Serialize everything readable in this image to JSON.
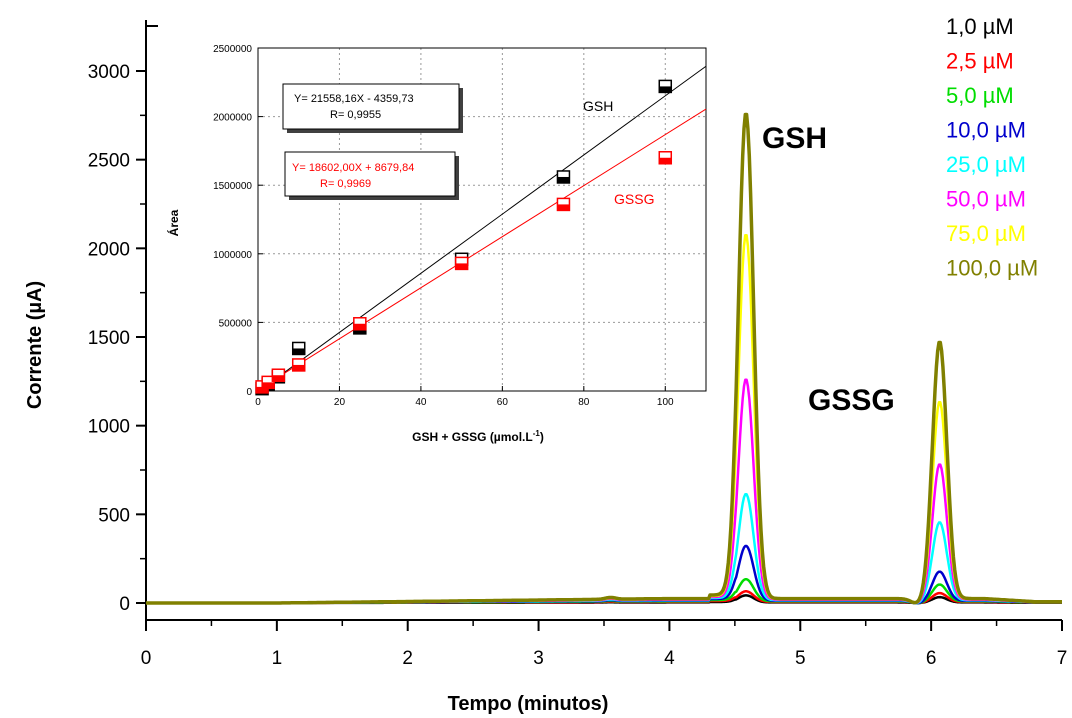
{
  "chart_data": [
    {
      "type": "line",
      "xlabel": "Tempo (minutos)",
      "ylabel": "Corrente (µA)",
      "xlim": [
        0,
        7
      ],
      "ylim": [
        -100,
        3200
      ],
      "xticks": [
        "0",
        "1",
        "2",
        "3",
        "4",
        "5",
        "6",
        "7"
      ],
      "yticks": [
        "0",
        "500",
        "1000",
        "1500",
        "2000",
        "2500",
        "3000"
      ],
      "peak_labels": [
        "GSH",
        "GSSG"
      ],
      "legend_position": "top-right",
      "series": [
        {
          "name": "1,0 µM",
          "color": "#000000",
          "gsh_peak": 40,
          "gssg_peak": 30
        },
        {
          "name": "2,5 µM",
          "color": "#ff0000",
          "gsh_peak": 60,
          "gssg_peak": 50
        },
        {
          "name": "5,0 µM",
          "color": "#00dd00",
          "gsh_peak": 125,
          "gssg_peak": 95
        },
        {
          "name": "10,0 µM",
          "color": "#0000cc",
          "gsh_peak": 310,
          "gssg_peak": 165
        },
        {
          "name": "25,0 µM",
          "color": "#00ffff",
          "gsh_peak": 600,
          "gssg_peak": 440
        },
        {
          "name": "50,0 µM",
          "color": "#ff00ff",
          "gsh_peak": 1245,
          "gssg_peak": 765
        },
        {
          "name": "75,0 µM",
          "color": "#ffff00",
          "gsh_peak": 2060,
          "gssg_peak": 1115
        },
        {
          "name": "100,0 µM",
          "color": "#808000",
          "gsh_peak": 2740,
          "gssg_peak": 1450
        }
      ]
    },
    {
      "type": "scatter",
      "xlabel": "GSH + GSSG (µmol.L",
      "xlabel_sup": "-1",
      "xlabel_suffix": ")",
      "ylabel": "Área",
      "xlim": [
        0,
        110
      ],
      "ylim": [
        0,
        2500000
      ],
      "xticks": [
        "0",
        "20",
        "40",
        "60",
        "80",
        "100"
      ],
      "yticks": [
        "0",
        "500000",
        "1000000",
        "1500000",
        "2000000",
        "2500000"
      ],
      "series": [
        {
          "name": "GSH",
          "color": "#000000",
          "x": [
            1,
            2.5,
            5,
            10,
            25,
            50,
            75,
            100
          ],
          "y": [
            17000,
            49500,
            103500,
            310000,
            460000,
            960000,
            1560000,
            2220000
          ],
          "fit": {
            "slope": 21558.16,
            "intercept": -4359.73,
            "equation": "Y= 21558,16X - 4359,73",
            "r": "R= 0,9955"
          }
        },
        {
          "name": "GSSG",
          "color": "#ff0000",
          "x": [
            1,
            2.5,
            5,
            10,
            25,
            50,
            75,
            100
          ],
          "y": [
            30000,
            63000,
            115000,
            190000,
            490000,
            930000,
            1360000,
            1700000
          ],
          "fit": {
            "slope": 18602.0,
            "intercept": 8679.84,
            "equation": "Y= 18602,00X + 8679,84",
            "r": "R= 0,9969"
          }
        }
      ]
    }
  ]
}
